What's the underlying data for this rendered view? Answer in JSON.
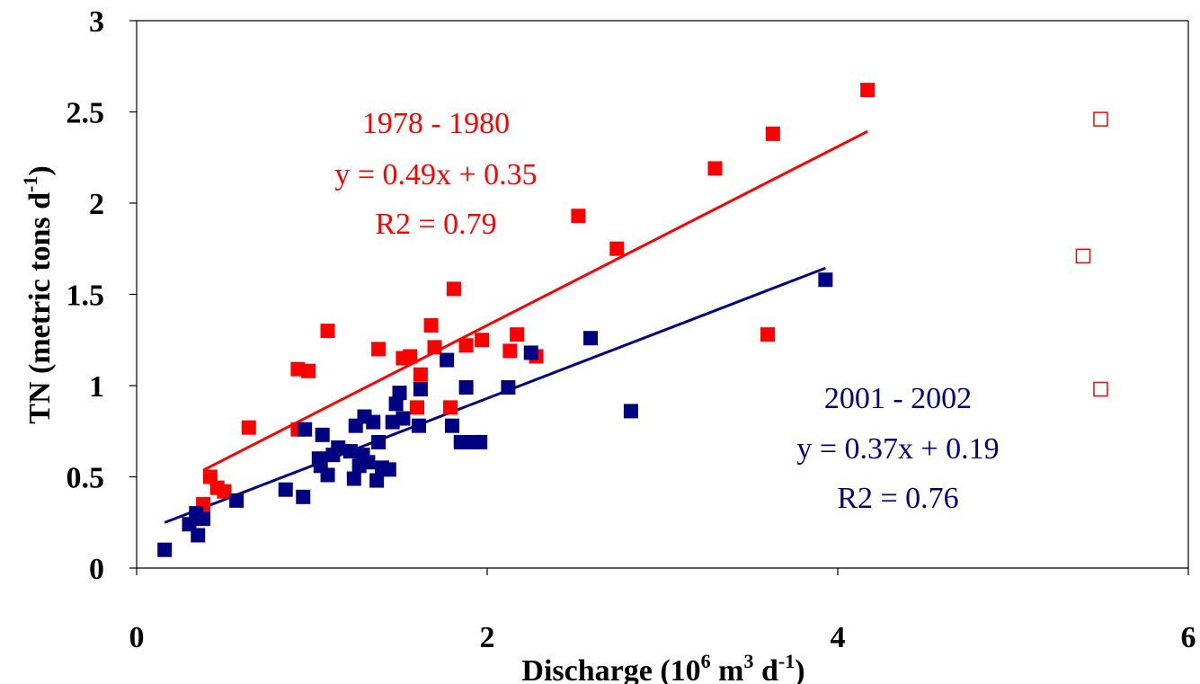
{
  "chart_data": {
    "type": "scatter",
    "xlim": [
      0,
      6
    ],
    "ylim": [
      0,
      3
    ],
    "x_ticks": [
      "0",
      "2",
      "4",
      "6"
    ],
    "y_ticks": [
      "0",
      "0.5",
      "1",
      "1.5",
      "2",
      "2.5",
      "3"
    ],
    "xlabel": {
      "main": "Discharge (10",
      "sup1": "6",
      "mid": " m",
      "sup2": "3",
      "mid2": " d",
      "sup3": "-1",
      "end": ")"
    },
    "ylabel": {
      "main": "TN (metric tons d",
      "sup": "-1",
      "end": ")"
    },
    "grid": false,
    "colors": {
      "red": "#ff0000",
      "blue": "#000080",
      "axis": "#000000"
    },
    "series": [
      {
        "label": "1978 - 1980",
        "equation": "y = 0.49x + 0.35",
        "r2": "R2 = 0.79",
        "color": "#ff0000",
        "marker": "filled-square",
        "points": [
          [
            0.38,
            0.35
          ],
          [
            0.42,
            0.5
          ],
          [
            0.46,
            0.44
          ],
          [
            0.5,
            0.42
          ],
          [
            0.64,
            0.77
          ],
          [
            0.92,
            1.09
          ],
          [
            0.98,
            1.08
          ],
          [
            0.92,
            0.76
          ],
          [
            1.09,
            1.3
          ],
          [
            1.38,
            1.2
          ],
          [
            1.52,
            1.15
          ],
          [
            1.56,
            1.16
          ],
          [
            1.6,
            0.88
          ],
          [
            1.62,
            1.06
          ],
          [
            1.68,
            1.33
          ],
          [
            1.7,
            1.21
          ],
          [
            1.79,
            0.88
          ],
          [
            1.81,
            1.53
          ],
          [
            1.88,
            1.22
          ],
          [
            1.97,
            1.25
          ],
          [
            2.13,
            1.19
          ],
          [
            2.17,
            1.28
          ],
          [
            2.28,
            1.16
          ],
          [
            2.52,
            1.93
          ],
          [
            2.74,
            1.75
          ],
          [
            3.3,
            2.19
          ],
          [
            3.6,
            1.28
          ],
          [
            3.63,
            2.38
          ],
          [
            4.17,
            2.62
          ]
        ],
        "fit": {
          "x": [
            0.38,
            4.17
          ],
          "slope": 0.49,
          "intercept": 0.35
        }
      },
      {
        "label": "2001 - 2002",
        "equation": "y = 0.37x + 0.19",
        "r2": "R2 = 0.76",
        "color": "#000080",
        "marker": "filled-square",
        "points": [
          [
            0.16,
            0.1
          ],
          [
            0.3,
            0.24
          ],
          [
            0.34,
            0.3
          ],
          [
            0.35,
            0.18
          ],
          [
            0.38,
            0.27
          ],
          [
            0.57,
            0.37
          ],
          [
            0.85,
            0.43
          ],
          [
            0.95,
            0.39
          ],
          [
            0.96,
            0.76
          ],
          [
            1.04,
            0.6
          ],
          [
            1.05,
            0.56
          ],
          [
            1.06,
            0.73
          ],
          [
            1.09,
            0.51
          ],
          [
            1.12,
            0.62
          ],
          [
            1.15,
            0.66
          ],
          [
            1.22,
            0.64
          ],
          [
            1.24,
            0.49
          ],
          [
            1.25,
            0.78
          ],
          [
            1.27,
            0.56
          ],
          [
            1.29,
            0.62
          ],
          [
            1.3,
            0.83
          ],
          [
            1.32,
            0.58
          ],
          [
            1.35,
            0.8
          ],
          [
            1.37,
            0.48
          ],
          [
            1.38,
            0.69
          ],
          [
            1.4,
            0.55
          ],
          [
            1.44,
            0.54
          ],
          [
            1.46,
            0.8
          ],
          [
            1.48,
            0.9
          ],
          [
            1.5,
            0.96
          ],
          [
            1.52,
            0.82
          ],
          [
            1.61,
            0.78
          ],
          [
            1.62,
            0.98
          ],
          [
            1.77,
            1.14
          ],
          [
            1.8,
            0.78
          ],
          [
            1.85,
            0.69
          ],
          [
            1.88,
            0.99
          ],
          [
            1.92,
            0.69
          ],
          [
            1.96,
            0.69
          ],
          [
            2.12,
            0.99
          ],
          [
            2.25,
            1.18
          ],
          [
            2.59,
            1.26
          ],
          [
            2.82,
            0.86
          ],
          [
            3.93,
            1.58
          ]
        ],
        "fit": {
          "x": [
            0.16,
            3.93
          ],
          "slope": 0.37,
          "intercept": 0.19
        }
      },
      {
        "label": "",
        "color": "#ff0000",
        "marker": "open-square",
        "points": [
          [
            5.5,
            2.46
          ],
          [
            5.4,
            1.71
          ],
          [
            5.5,
            0.98
          ]
        ]
      }
    ]
  }
}
